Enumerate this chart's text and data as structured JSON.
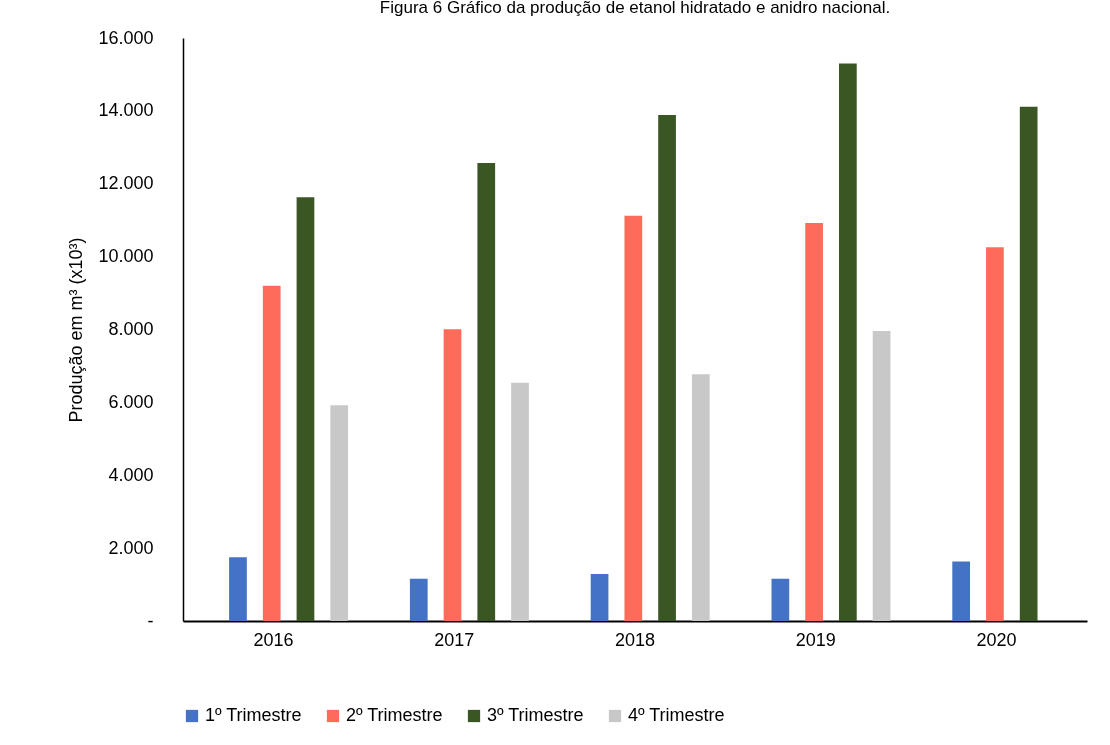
{
  "chart_data": {
    "type": "bar",
    "title": "Figura 6 Gráfico da produção de etanol hidratado e anidro nacional.",
    "ylabel": "Produção em m³ (x10³)",
    "categories": [
      "2016",
      "2017",
      "2018",
      "2019",
      "2020"
    ],
    "series": [
      {
        "name": "1º Trimestre",
        "color": "#4472c4",
        "values": [
          1750,
          1160,
          1290,
          1160,
          1630
        ]
      },
      {
        "name": "2º Trimestre",
        "color": "#ff6b5b",
        "values": [
          9200,
          8010,
          11120,
          10920,
          10260
        ]
      },
      {
        "name": "3º Trimestre",
        "color": "#3a5623",
        "values": [
          11630,
          12570,
          13890,
          15300,
          14110
        ]
      },
      {
        "name": "4º Trimestre",
        "color": "#c8c8c8",
        "values": [
          5920,
          6540,
          6770,
          7960,
          null
        ]
      }
    ],
    "ylim": [
      0,
      16000
    ],
    "yticks": [
      {
        "value": 0,
        "label": "-"
      },
      {
        "value": 2000,
        "label": "2.000"
      },
      {
        "value": 4000,
        "label": "4.000"
      },
      {
        "value": 6000,
        "label": "6.000"
      },
      {
        "value": 8000,
        "label": "8.000"
      },
      {
        "value": 10000,
        "label": "10.000"
      },
      {
        "value": 12000,
        "label": "12.000"
      },
      {
        "value": 14000,
        "label": "14.000"
      },
      {
        "value": 16000,
        "label": "16.000"
      }
    ],
    "grid": false,
    "legend": "bottom"
  }
}
